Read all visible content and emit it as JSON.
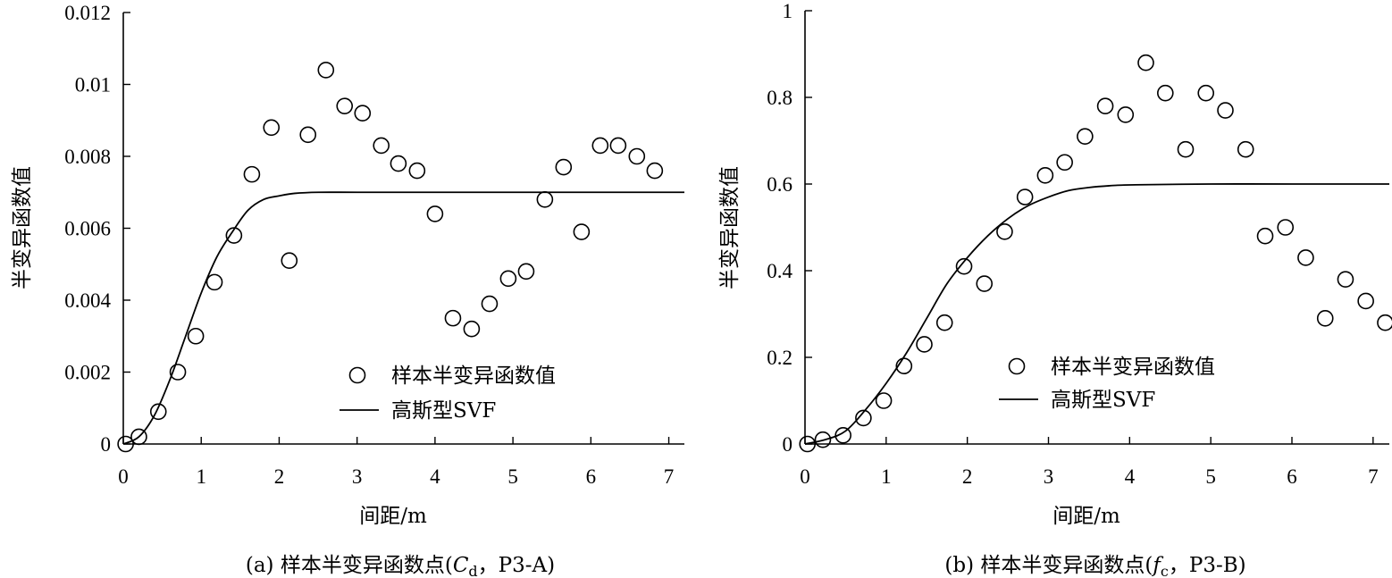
{
  "chart_data": [
    {
      "type": "scatter",
      "caption": "(a) 样本半变异函数点(Cd，P3-A)",
      "caption_parts": {
        "prefix": "(a) 样本半变异函数点(",
        "symbol": "C",
        "subscript": "d",
        "suffix": "，P3-A)"
      },
      "xlabel": "间距/m",
      "ylabel": "半变异函数值",
      "xlim": [
        0,
        7.2
      ],
      "ylim": [
        0,
        0.012
      ],
      "xticks": [
        "0",
        "1",
        "2",
        "3",
        "4",
        "5",
        "6",
        "7"
      ],
      "xtick_values": [
        0,
        1,
        2,
        3,
        4,
        5,
        6,
        7
      ],
      "yticks": [
        "0",
        "0.002",
        "0.004",
        "0.006",
        "0.008",
        "0.01",
        "0.012"
      ],
      "ytick_values": [
        0,
        0.002,
        0.004,
        0.006,
        0.008,
        0.01,
        0.012
      ],
      "legend": {
        "placement": "bottom-center",
        "points_label": "样本半变异函数值",
        "curve_label": "高斯型SVF"
      },
      "series": [
        {
          "name": "样本半变异函数值",
          "kind": "points",
          "x": [
            0.03,
            0.2,
            0.45,
            0.7,
            0.93,
            1.17,
            1.42,
            1.65,
            1.9,
            2.13,
            2.37,
            2.6,
            2.84,
            3.07,
            3.31,
            3.53,
            3.77,
            4.0,
            4.23,
            4.47,
            4.7,
            4.94,
            5.17,
            5.41,
            5.65,
            5.88,
            6.12,
            6.35,
            6.59,
            6.82
          ],
          "y": [
            0.0,
            0.0002,
            0.0009,
            0.002,
            0.003,
            0.0045,
            0.0058,
            0.0075,
            0.0088,
            0.0051,
            0.0086,
            0.0104,
            0.0094,
            0.0092,
            0.0083,
            0.0078,
            0.0076,
            0.0064,
            0.0035,
            0.0032,
            0.0039,
            0.0046,
            0.0048,
            0.0068,
            0.0077,
            0.0059,
            0.0083,
            0.0083,
            0.008,
            0.0076
          ]
        },
        {
          "name": "高斯型SVF",
          "kind": "curve",
          "x": [
            0,
            0.2,
            0.4,
            0.6,
            0.8,
            1.0,
            1.2,
            1.4,
            1.6,
            1.8,
            2.0,
            2.2,
            2.5,
            3.0,
            4.0,
            5.0,
            6.0,
            7.2
          ],
          "y": [
            0.0,
            0.0002,
            0.0008,
            0.0018,
            0.003,
            0.0042,
            0.0052,
            0.0059,
            0.0065,
            0.0068,
            0.0069,
            0.00697,
            0.007,
            0.007,
            0.007,
            0.007,
            0.007,
            0.007
          ]
        }
      ]
    },
    {
      "type": "scatter",
      "caption": "(b) 样本半变异函数点(fc，P3-B)",
      "caption_parts": {
        "prefix": "(b) 样本半变异函数点(",
        "symbol": "f",
        "subscript": "c",
        "suffix": "，P3-B)"
      },
      "xlabel": "间距/m",
      "ylabel": "半变异函数值",
      "xlim": [
        0,
        7.2
      ],
      "ylim": [
        0,
        1
      ],
      "xticks": [
        "0",
        "1",
        "2",
        "3",
        "4",
        "5",
        "6",
        "7"
      ],
      "xtick_values": [
        0,
        1,
        2,
        3,
        4,
        5,
        6,
        7
      ],
      "yticks": [
        "0",
        "0.2",
        "0.4",
        "0.6",
        "0.8",
        "1"
      ],
      "ytick_values": [
        0,
        0.2,
        0.4,
        0.6,
        0.8,
        1
      ],
      "legend": {
        "placement": "bottom-center",
        "points_label": "样本半变异函数值",
        "curve_label": "高斯型SVF"
      },
      "series": [
        {
          "name": "样本半变异函数值",
          "kind": "points",
          "x": [
            0.03,
            0.22,
            0.47,
            0.72,
            0.97,
            1.22,
            1.47,
            1.72,
            1.96,
            2.21,
            2.46,
            2.71,
            2.96,
            3.2,
            3.45,
            3.7,
            3.95,
            4.2,
            4.44,
            4.69,
            4.94,
            5.18,
            5.43,
            5.67,
            5.92,
            6.17,
            6.41,
            6.66,
            6.91,
            7.15
          ],
          "y": [
            0.0,
            0.01,
            0.02,
            0.06,
            0.1,
            0.18,
            0.23,
            0.28,
            0.41,
            0.37,
            0.49,
            0.57,
            0.62,
            0.65,
            0.71,
            0.78,
            0.76,
            0.88,
            0.81,
            0.68,
            0.81,
            0.77,
            0.68,
            0.48,
            0.5,
            0.43,
            0.29,
            0.38,
            0.33,
            0.28
          ]
        },
        {
          "name": "高斯型SVF",
          "kind": "curve",
          "x": [
            0,
            0.25,
            0.5,
            0.75,
            1.0,
            1.25,
            1.5,
            1.75,
            2.0,
            2.25,
            2.5,
            2.75,
            3.0,
            3.25,
            3.5,
            3.75,
            4.0,
            5.0,
            6.0,
            7.2
          ],
          "y": [
            0.0,
            0.01,
            0.03,
            0.08,
            0.14,
            0.21,
            0.29,
            0.37,
            0.43,
            0.48,
            0.52,
            0.55,
            0.57,
            0.585,
            0.592,
            0.596,
            0.598,
            0.6,
            0.6,
            0.6
          ]
        }
      ]
    }
  ]
}
